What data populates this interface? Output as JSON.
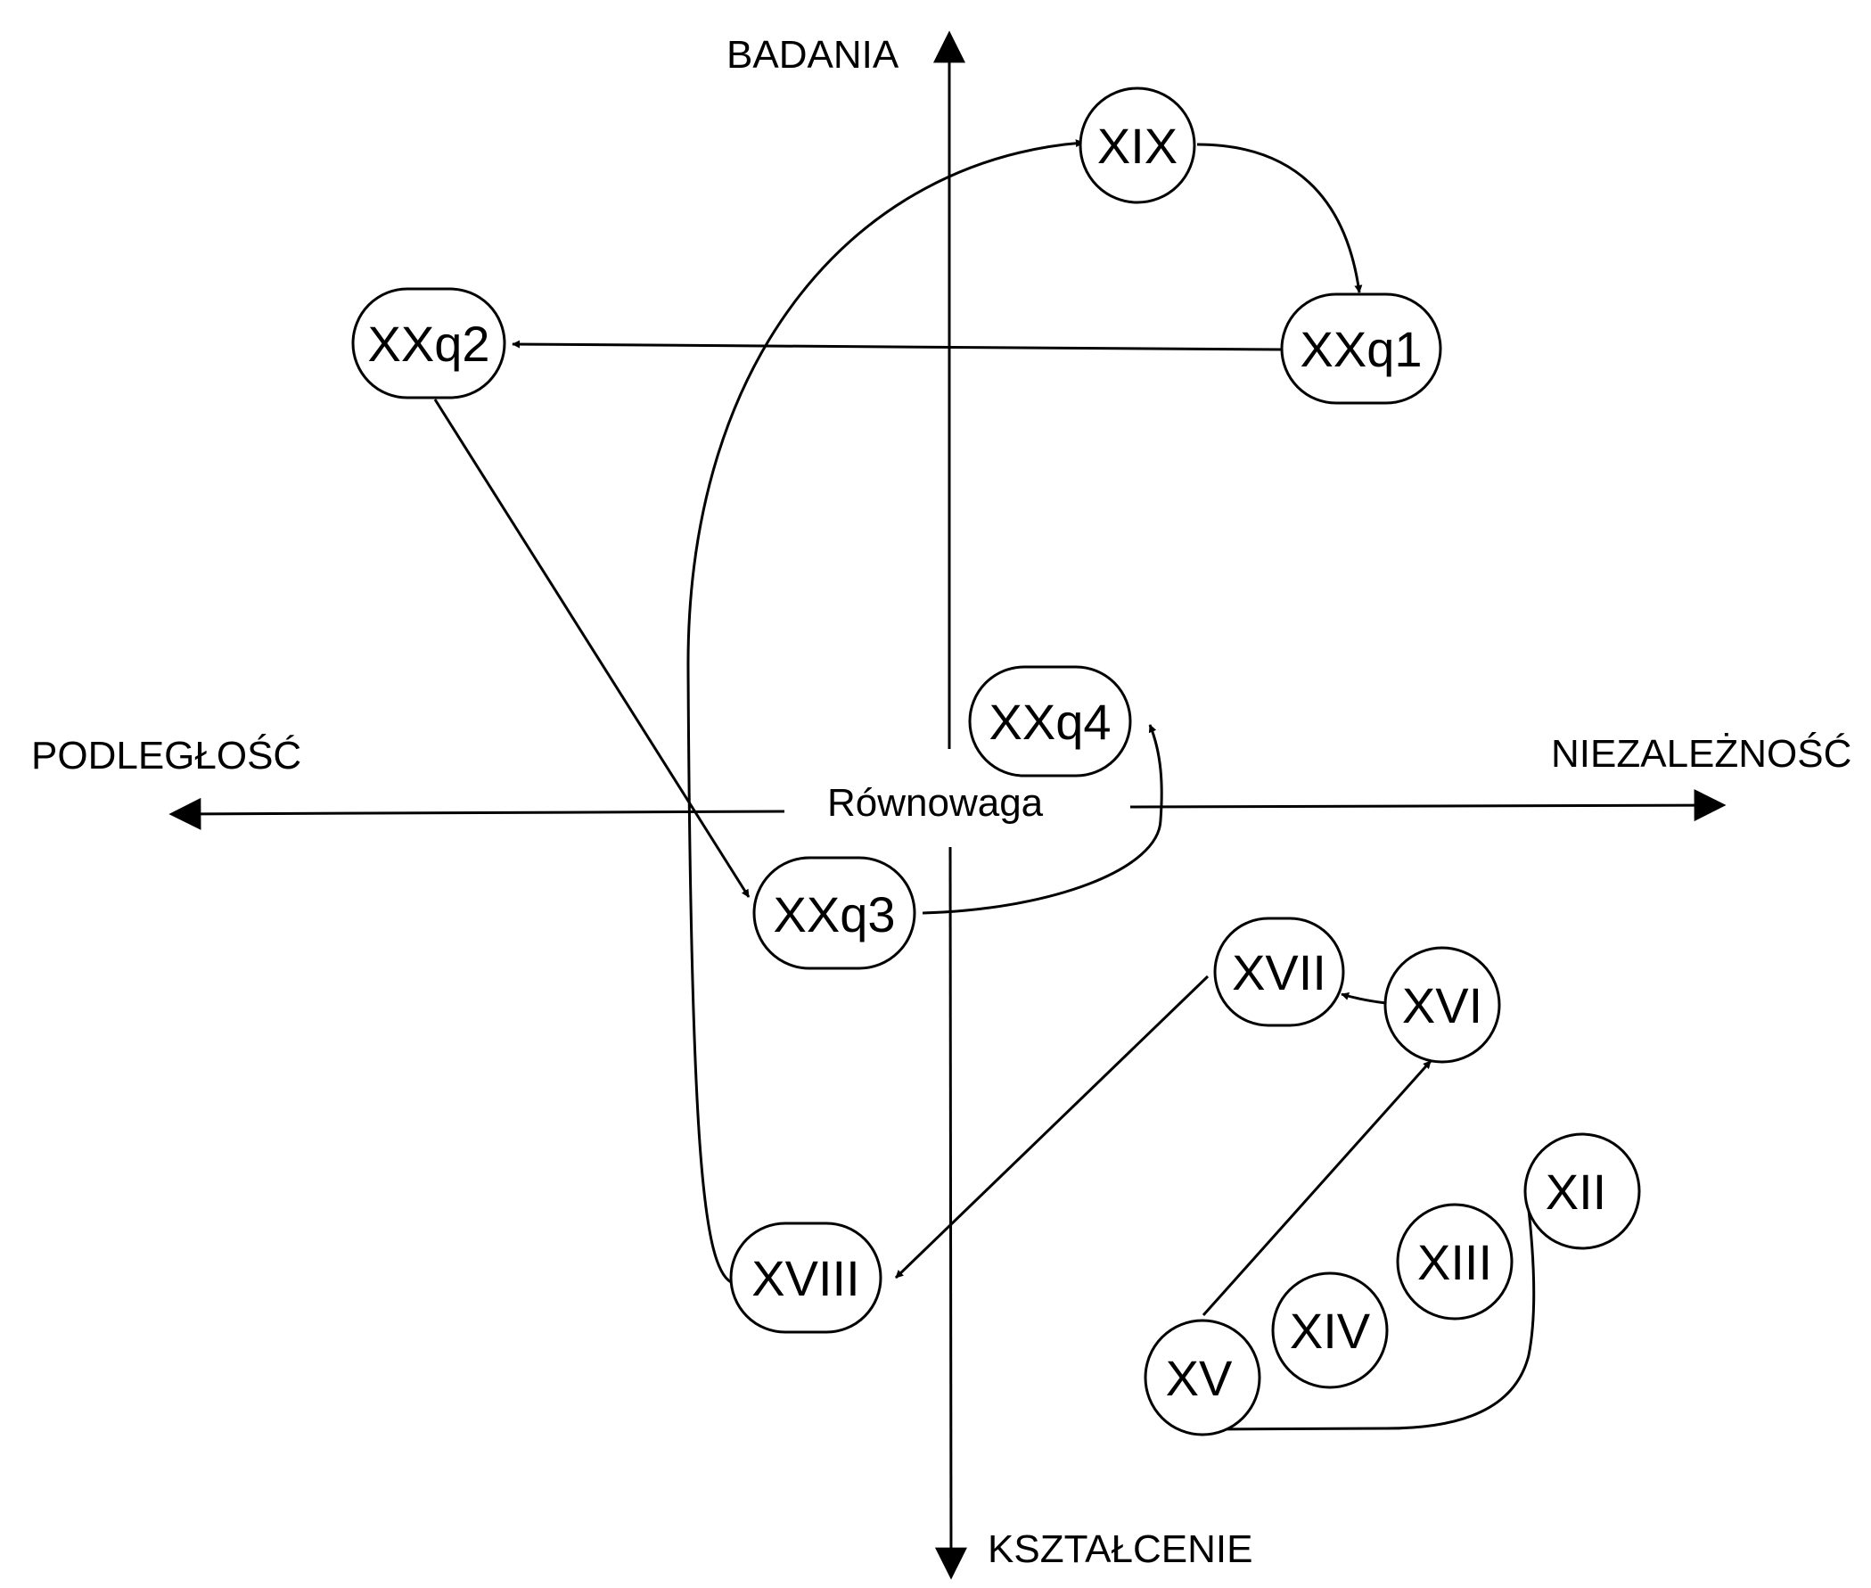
{
  "axes": {
    "top": "BADANIA",
    "bottom": "KSZTAŁCENIE",
    "left": "PODLEGŁOŚĆ",
    "right": "NIEZALEŻNOŚĆ",
    "center": "Równowaga"
  },
  "nodes": {
    "xix": "XIX",
    "xxq1": "XXq1",
    "xxq2": "XXq2",
    "xxq3": "XXq3",
    "xxq4": "XXq4",
    "xvii": "XVII",
    "xvi": "XVI",
    "xviii": "XVIII",
    "xii": "XII",
    "xiii": "XIII",
    "xiv": "XIV",
    "xv": "XV"
  },
  "edges": [
    {
      "from": "XIX",
      "to": "XXq1"
    },
    {
      "from": "XXq1",
      "to": "XXq2"
    },
    {
      "from": "XXq2",
      "to": "XXq3"
    },
    {
      "from": "XXq3",
      "to": "XXq4"
    },
    {
      "from": "XVIII",
      "to": "XIX"
    },
    {
      "from": "XVII",
      "to": "XVIII"
    },
    {
      "from": "XVI",
      "to": "XVII"
    },
    {
      "from": "XV",
      "to": "XVI"
    },
    {
      "from": "XII",
      "to": "XV"
    }
  ]
}
